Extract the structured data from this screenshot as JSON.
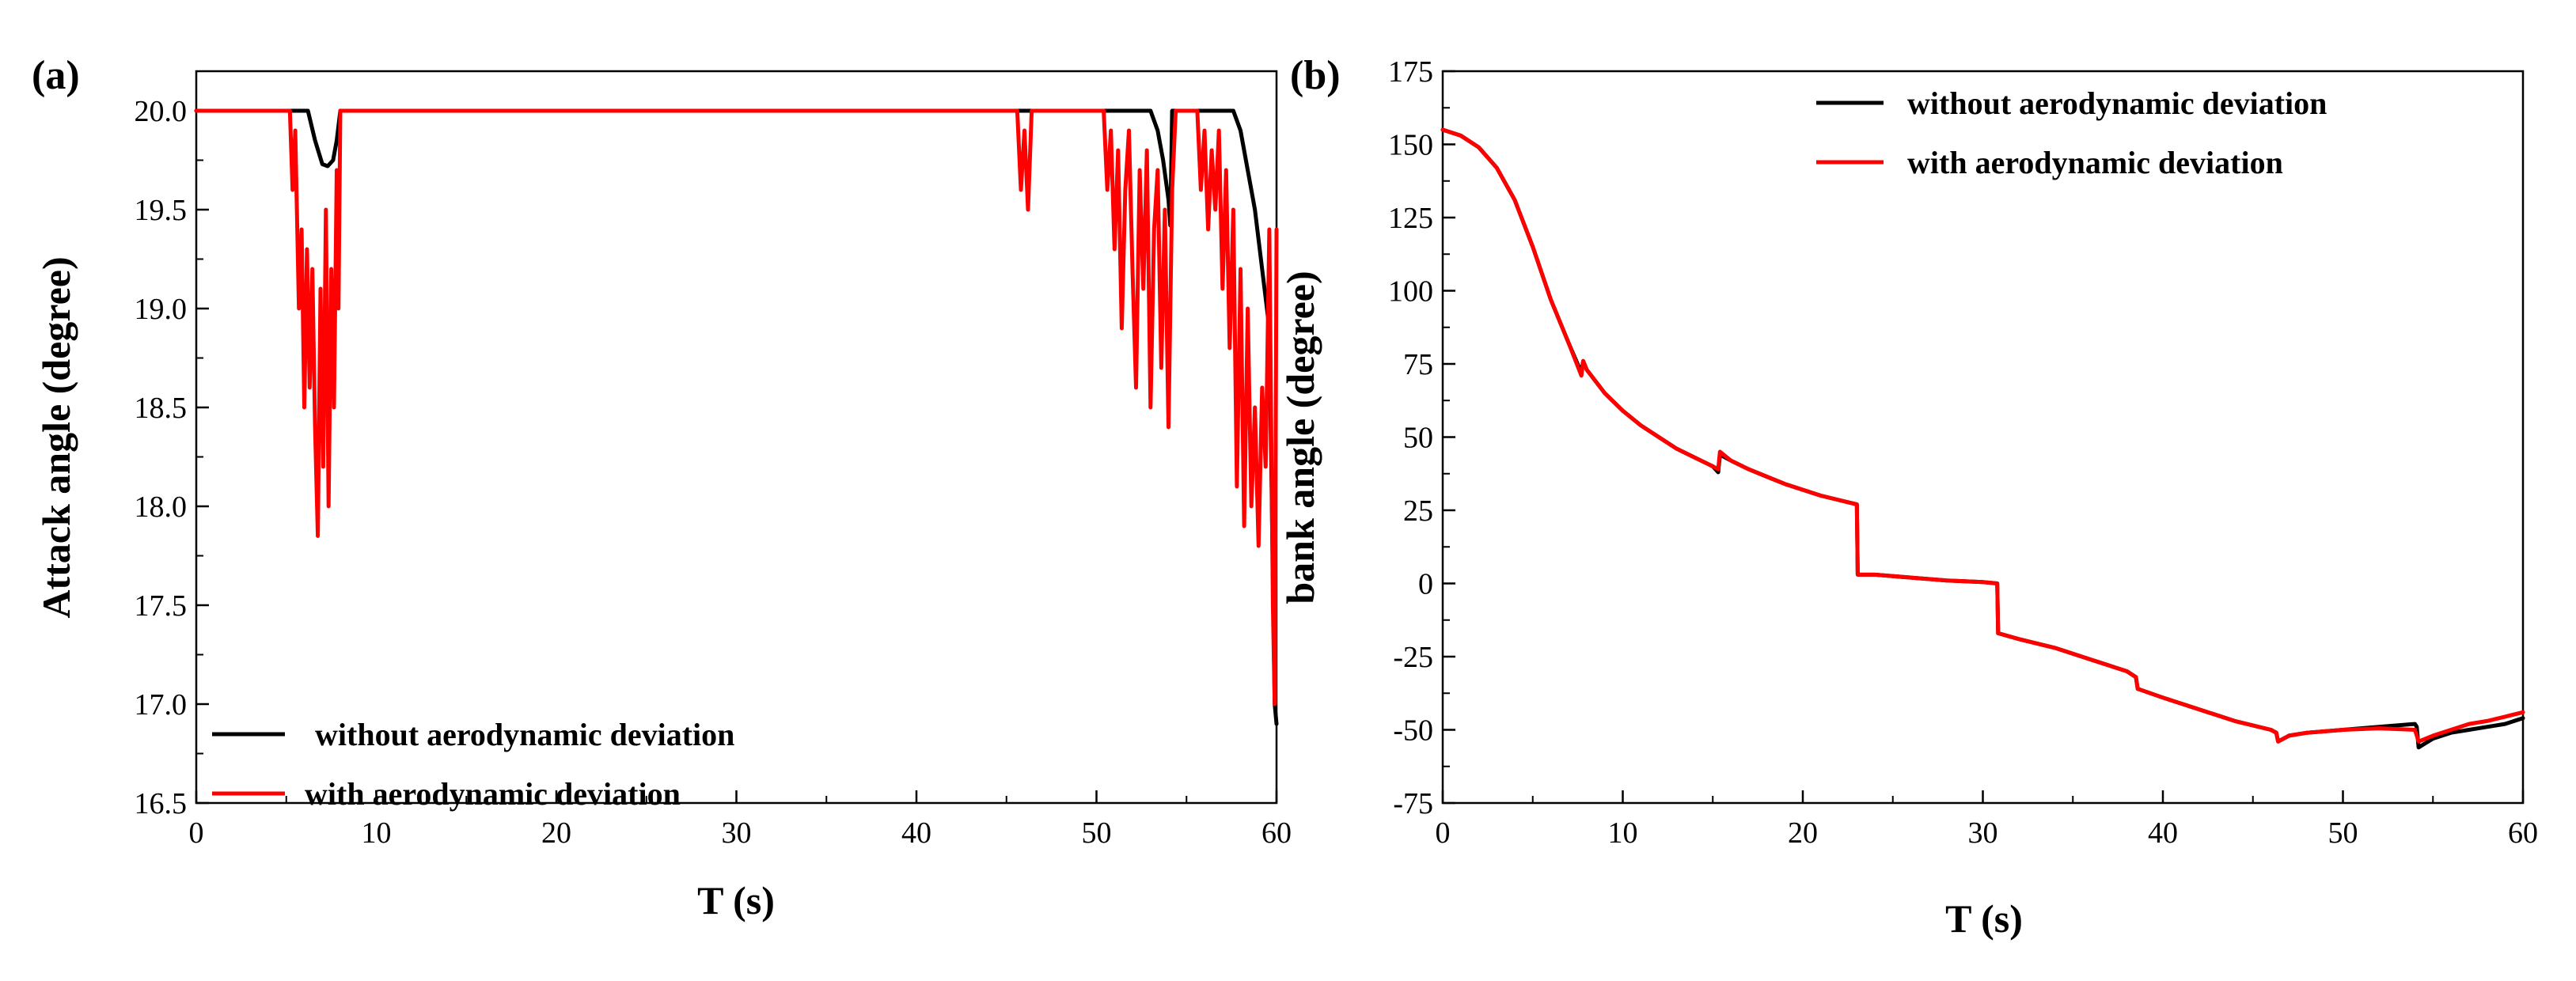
{
  "colors": {
    "without": "#000000",
    "with": "#ff0000"
  },
  "chart_data": [
    {
      "type": "line",
      "panel_label": "(a)",
      "xlabel": "T (s)",
      "ylabel": "Attack angle (degree)",
      "xlim": [
        0,
        60
      ],
      "ylim": [
        16.5,
        20.2
      ],
      "xticks": [
        0,
        10,
        20,
        30,
        40,
        50,
        60
      ],
      "xtick_labels": [
        "0",
        "10",
        "20",
        "30",
        "40",
        "50",
        "60"
      ],
      "yticks": [
        16.5,
        17.0,
        17.5,
        18.0,
        18.5,
        19.0,
        19.5,
        20.0
      ],
      "ytick_labels": [
        "16.5",
        "17.0",
        "17.5",
        "18.0",
        "18.5",
        "19.0",
        "19.5",
        "20.0"
      ],
      "legend_position": "bottom-left",
      "series": [
        {
          "name": "without aerodynamic deviation",
          "color": "#000000",
          "x": [
            0,
            6.2,
            6.6,
            7.0,
            7.3,
            7.6,
            7.8,
            8.0,
            53.0,
            53.4,
            53.7,
            54.0,
            54.1,
            54.2,
            57.6,
            58.0,
            58.4,
            58.8,
            59.2,
            59.6,
            59.9,
            60
          ],
          "y": [
            20.0,
            20.0,
            19.85,
            19.73,
            19.72,
            19.75,
            19.85,
            20.0,
            20.0,
            19.9,
            19.75,
            19.55,
            19.42,
            20.0,
            20.0,
            19.9,
            19.7,
            19.5,
            19.2,
            18.9,
            17.0,
            16.9
          ]
        },
        {
          "name": "with aerodynamic deviation",
          "color": "#ff0000",
          "x": [
            0,
            5.2,
            5.35,
            5.5,
            5.7,
            5.85,
            6.0,
            6.15,
            6.3,
            6.45,
            6.6,
            6.75,
            6.9,
            7.05,
            7.2,
            7.35,
            7.5,
            7.65,
            7.8,
            7.9,
            8.0,
            45.6,
            45.8,
            46.0,
            46.2,
            46.4,
            50.4,
            50.6,
            50.8,
            51.0,
            51.2,
            51.4,
            51.6,
            51.8,
            52.0,
            52.2,
            52.4,
            52.6,
            52.8,
            53.0,
            53.2,
            53.4,
            53.6,
            53.8,
            54.0,
            54.2,
            54.4,
            55.6,
            55.8,
            56.0,
            56.2,
            56.4,
            56.6,
            56.8,
            57.0,
            57.2,
            57.4,
            57.6,
            57.8,
            58.0,
            58.2,
            58.4,
            58.6,
            58.8,
            59.0,
            59.2,
            59.4,
            59.6,
            59.8,
            59.9,
            60
          ],
          "y": [
            20.0,
            20.0,
            19.6,
            19.9,
            19.0,
            19.4,
            18.5,
            19.3,
            18.6,
            19.2,
            18.4,
            17.85,
            19.1,
            18.2,
            19.5,
            18.0,
            19.2,
            18.5,
            19.7,
            19.0,
            20.0,
            20.0,
            19.6,
            19.9,
            19.5,
            20.0,
            20.0,
            19.6,
            19.9,
            19.3,
            19.8,
            18.9,
            19.6,
            19.9,
            19.2,
            18.6,
            19.7,
            19.1,
            19.8,
            18.5,
            19.4,
            19.7,
            18.7,
            19.5,
            18.4,
            19.6,
            20.0,
            20.0,
            19.6,
            19.9,
            19.4,
            19.8,
            19.5,
            19.9,
            19.1,
            19.7,
            18.8,
            19.5,
            18.1,
            19.2,
            17.9,
            19.0,
            18.0,
            18.5,
            17.8,
            18.6,
            18.2,
            19.4,
            17.5,
            17.0,
            19.4
          ]
        }
      ]
    },
    {
      "type": "line",
      "panel_label": "(b)",
      "xlabel": "T (s)",
      "ylabel": "bank angle (degree)",
      "xlim": [
        0,
        60
      ],
      "ylim": [
        -75,
        175
      ],
      "xticks": [
        0,
        10,
        20,
        30,
        40,
        50,
        60
      ],
      "xtick_labels": [
        "0",
        "10",
        "20",
        "30",
        "40",
        "50",
        "60"
      ],
      "yticks": [
        -75,
        -50,
        -25,
        0,
        25,
        50,
        75,
        100,
        125,
        150,
        175
      ],
      "ytick_labels": [
        "-75",
        "-50",
        "-25",
        "0",
        "25",
        "50",
        "75",
        "100",
        "125",
        "150",
        "175"
      ],
      "legend_position": "top-right",
      "series": [
        {
          "name": "without aerodynamic deviation",
          "color": "#000000",
          "x": [
            0,
            1,
            2,
            3,
            4,
            5,
            6,
            7,
            7.7,
            7.8,
            8,
            9,
            10,
            11,
            12,
            13,
            14,
            15,
            15.3,
            15.4,
            16,
            17,
            18,
            19,
            20,
            21,
            22,
            23,
            23.05,
            24,
            26,
            28,
            30,
            30.8,
            30.85,
            32,
            34,
            36,
            38,
            38.5,
            38.6,
            40,
            42,
            44,
            46,
            46.3,
            46.4,
            47,
            48,
            50,
            52,
            54,
            54.1,
            54.2,
            55,
            56,
            57,
            58,
            59,
            60
          ],
          "y": [
            155,
            153,
            149,
            142,
            131,
            115,
            97,
            82,
            72,
            76,
            73,
            65,
            59,
            54,
            50,
            46,
            43,
            40,
            38,
            44,
            42,
            39,
            36.5,
            34,
            32,
            30,
            28.5,
            27,
            3,
            3,
            2,
            1,
            0.5,
            0,
            -17,
            -19,
            -22,
            -26,
            -30,
            -32,
            -36,
            -39,
            -43,
            -47,
            -50,
            -51,
            -54,
            -52,
            -51,
            -50,
            -49,
            -48,
            -49,
            -56,
            -53,
            -51,
            -50,
            -49,
            -48,
            -46
          ]
        },
        {
          "name": "with aerodynamic deviation",
          "color": "#ff0000",
          "x": [
            0,
            1,
            2,
            3,
            4,
            5,
            6,
            7,
            7.7,
            7.8,
            8,
            9,
            10,
            11,
            12,
            13,
            14,
            15,
            15.3,
            15.4,
            16,
            17,
            18,
            19,
            20,
            21,
            22,
            23,
            23.05,
            24,
            26,
            28,
            30,
            30.8,
            30.85,
            32,
            34,
            36,
            38,
            38.5,
            38.6,
            40,
            42,
            44,
            46,
            46.3,
            46.4,
            47,
            48,
            50,
            52,
            54,
            54.1,
            54.2,
            55,
            56,
            57,
            58,
            59,
            60
          ],
          "y": [
            155,
            153,
            149,
            142,
            131,
            115,
            97,
            82,
            71,
            76,
            73,
            65,
            59,
            54,
            50,
            46,
            43,
            40,
            39,
            45,
            42,
            39,
            36.5,
            34,
            32,
            30,
            28.5,
            27,
            3,
            3,
            2,
            1,
            0.5,
            0,
            -17,
            -19,
            -22,
            -26,
            -30,
            -32,
            -36,
            -39,
            -43,
            -47,
            -50,
            -51,
            -54,
            -52,
            -51,
            -50,
            -49.5,
            -50,
            -52,
            -54,
            -52,
            -50,
            -48,
            -47,
            -45.5,
            -44
          ]
        }
      ]
    }
  ]
}
